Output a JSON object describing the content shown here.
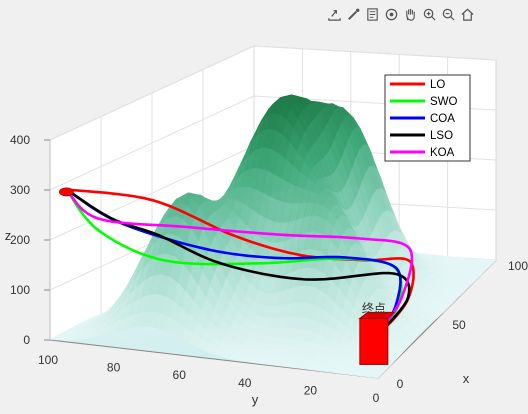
{
  "toolbar": {
    "icons": [
      "export-icon",
      "brush-icon",
      "datatip-icon",
      "rotate-3d-icon",
      "pan-icon",
      "zoom-in-icon",
      "zoom-out-icon",
      "home-icon"
    ]
  },
  "chart_data": {
    "type": "3d-surface-with-paths",
    "xlabel": "x",
    "ylabel": "y",
    "zlabel": "z",
    "xlim": [
      0,
      100
    ],
    "ylim": [
      0,
      100
    ],
    "zlim": [
      0,
      400
    ],
    "xticks": [
      "0",
      "50",
      "100"
    ],
    "yticks": [
      "100",
      "80",
      "60",
      "40",
      "20",
      "0"
    ],
    "zticks": [
      "0",
      "100",
      "200",
      "300",
      "400"
    ],
    "grid": true,
    "legend_position": "top-right",
    "surface": {
      "colormap": [
        "#e6f6f6",
        "#bde6dc",
        "#7dcab0",
        "#3ea878",
        "#1f7d4b"
      ],
      "peaks": [
        {
          "x": 50,
          "y": 55,
          "z": 390
        },
        {
          "x": 70,
          "y": 40,
          "z": 270
        },
        {
          "x": 20,
          "y": 70,
          "z": 260
        },
        {
          "x": 35,
          "y": 30,
          "z": 200
        },
        {
          "x": 80,
          "y": 75,
          "z": 170
        }
      ]
    },
    "start_label": "",
    "end_label": "终点",
    "markers": [
      {
        "name": "start",
        "x": 0,
        "y": 95,
        "z": 300,
        "color": "#ff0000"
      },
      {
        "name": "end",
        "x": 10,
        "y": 5,
        "z": 50,
        "color": "#ff0000"
      }
    ],
    "series": [
      {
        "name": "LO",
        "color": "#ff0000",
        "points": [
          [
            0,
            95,
            305
          ],
          [
            20,
            80,
            255
          ],
          [
            35,
            62,
            165
          ],
          [
            45,
            45,
            115
          ],
          [
            55,
            28,
            92
          ],
          [
            62,
            15,
            80
          ],
          [
            40,
            6,
            58
          ],
          [
            10,
            5,
            50
          ]
        ]
      },
      {
        "name": "SWO",
        "color": "#00ff00",
        "points": [
          [
            0,
            95,
            305
          ],
          [
            5,
            88,
            218
          ],
          [
            18,
            75,
            142
          ],
          [
            38,
            55,
            108
          ],
          [
            55,
            38,
            90
          ],
          [
            60,
            20,
            72
          ],
          [
            38,
            8,
            56
          ],
          [
            10,
            5,
            50
          ]
        ]
      },
      {
        "name": "COA",
        "color": "#0000ff",
        "points": [
          [
            0,
            95,
            305
          ],
          [
            10,
            85,
            228
          ],
          [
            28,
            68,
            150
          ],
          [
            42,
            52,
            112
          ],
          [
            55,
            35,
            94
          ],
          [
            58,
            18,
            74
          ],
          [
            35,
            8,
            56
          ],
          [
            10,
            5,
            50
          ]
        ]
      },
      {
        "name": "LSO",
        "color": "#000000",
        "points": [
          [
            0,
            95,
            305
          ],
          [
            -2,
            80,
            262
          ],
          [
            2,
            68,
            230
          ],
          [
            15,
            55,
            155
          ],
          [
            35,
            38,
            92
          ],
          [
            60,
            20,
            58
          ],
          [
            45,
            8,
            50
          ],
          [
            10,
            5,
            50
          ]
        ]
      },
      {
        "name": "KOA",
        "color": "#ff00ff",
        "points": [
          [
            0,
            95,
            305
          ],
          [
            8,
            90,
            235
          ],
          [
            30,
            75,
            185
          ],
          [
            50,
            55,
            140
          ],
          [
            65,
            35,
            110
          ],
          [
            68,
            18,
            90
          ],
          [
            40,
            8,
            62
          ],
          [
            10,
            5,
            50
          ]
        ]
      }
    ]
  }
}
